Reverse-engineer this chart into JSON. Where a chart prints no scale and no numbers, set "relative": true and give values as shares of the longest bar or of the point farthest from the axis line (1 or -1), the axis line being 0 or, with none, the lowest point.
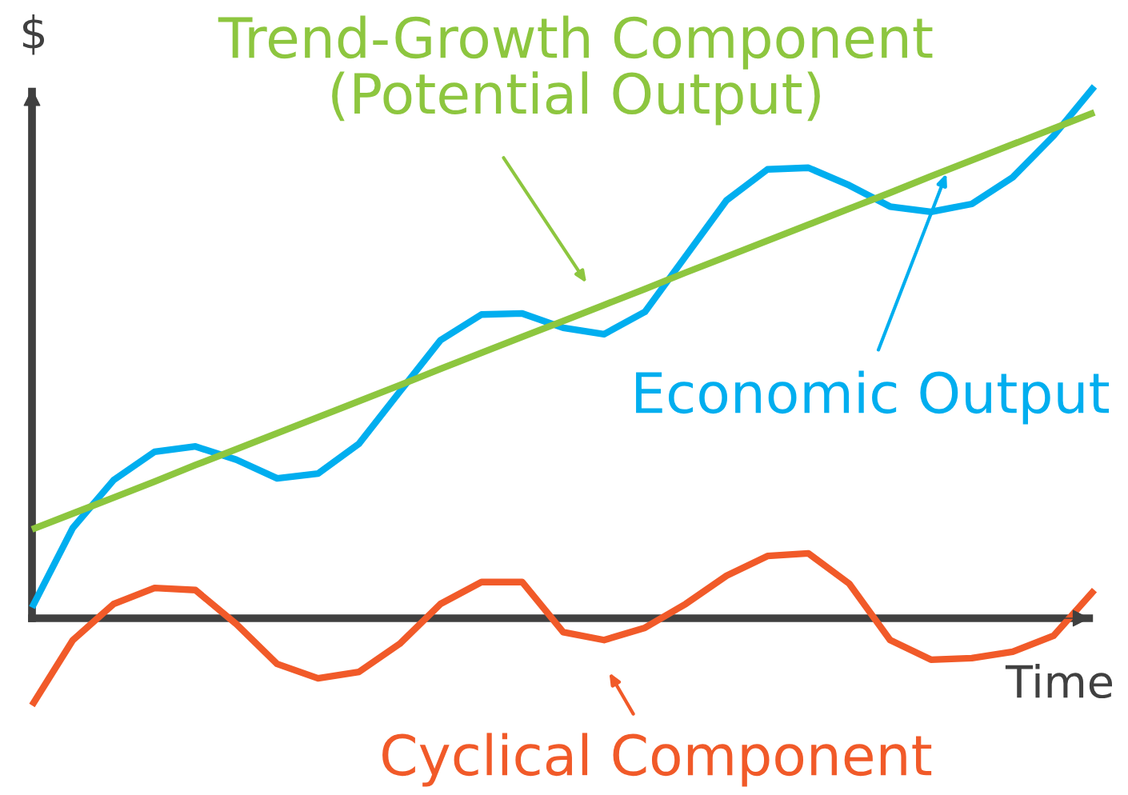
{
  "chart_data": {
    "type": "line",
    "relative": true,
    "xlabel": "Time",
    "ylabel": "$",
    "categories": [
      null,
      null,
      null,
      null,
      null,
      null,
      null,
      null,
      null,
      null,
      null,
      null,
      null,
      null,
      null,
      null,
      null,
      null,
      null,
      null,
      null,
      null,
      null,
      null,
      null,
      null,
      null
    ],
    "series": [
      {
        "name": "Economic Output",
        "color": "#00aeef",
        "values": [
          0.02,
          0.17,
          0.26,
          0.313,
          0.323,
          0.298,
          0.263,
          0.272,
          0.328,
          0.426,
          0.523,
          0.571,
          0.573,
          0.546,
          0.534,
          0.576,
          0.681,
          0.786,
          0.844,
          0.847,
          0.814,
          0.774,
          0.764,
          0.779,
          0.829,
          0.907,
          1.0
        ]
      },
      {
        "name": "Trend-Growth Component\n(Potential Output)",
        "color": "#8dc63f",
        "values": [
          0.167,
          0.197,
          0.227,
          0.257,
          0.288,
          0.318,
          0.348,
          0.378,
          0.408,
          0.438,
          0.469,
          0.499,
          0.529,
          0.559,
          0.589,
          0.619,
          0.65,
          0.68,
          0.71,
          0.74,
          0.77,
          0.8,
          0.831,
          0.861,
          0.891,
          0.921,
          0.951
        ]
      },
      {
        "name": "Cyclical Component",
        "color": "#f15a29",
        "values": [
          -0.164,
          -0.041,
          0.027,
          0.057,
          0.053,
          -0.011,
          -0.086,
          -0.113,
          -0.101,
          -0.048,
          0.027,
          0.068,
          0.068,
          -0.026,
          -0.041,
          -0.018,
          0.027,
          0.08,
          0.117,
          0.122,
          0.065,
          -0.041,
          -0.078,
          -0.075,
          -0.063,
          -0.033,
          0.053
        ]
      }
    ],
    "marker": "none",
    "line_style": "solid"
  }
}
